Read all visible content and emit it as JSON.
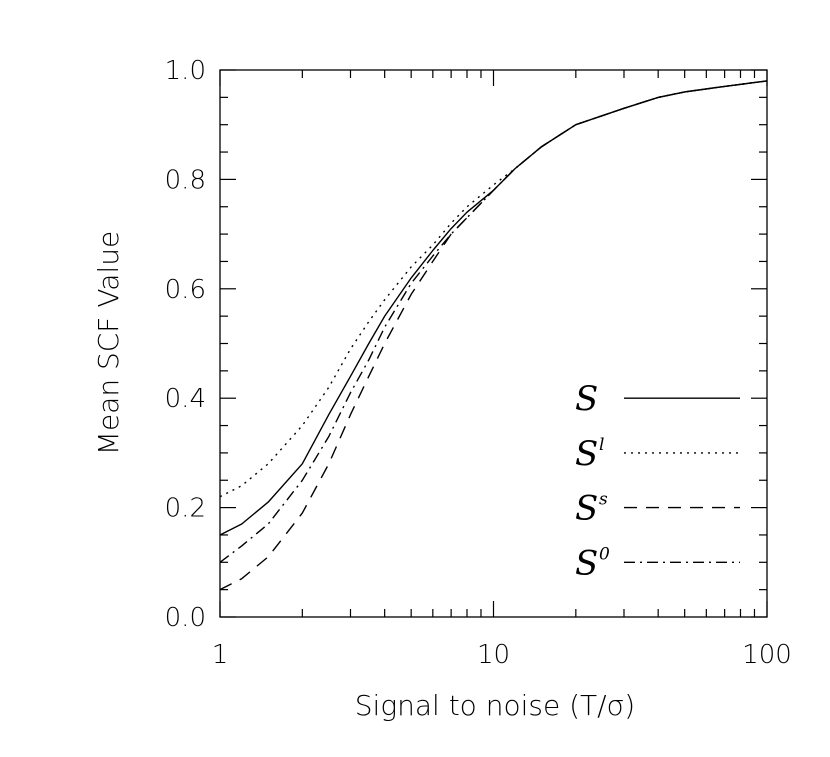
{
  "chart_data": {
    "type": "line",
    "xlabel": "Signal to noise (T/σ)",
    "ylabel": "Mean SCF Value",
    "xscale": "log",
    "xlim": [
      1,
      100
    ],
    "ylim": [
      0.0,
      1.0
    ],
    "x_ticks": [
      "1",
      "10",
      "100"
    ],
    "y_ticks": [
      "0.0",
      "0.2",
      "0.4",
      "0.6",
      "0.8",
      "1.0"
    ],
    "grid": false,
    "legend_position": "lower-right",
    "series": [
      {
        "name": "S",
        "superscript": "",
        "dash": "solid",
        "x": [
          1,
          1.2,
          1.5,
          2,
          2.5,
          3,
          3.5,
          4,
          5,
          6,
          7,
          8,
          10,
          12,
          15,
          20,
          30,
          40,
          50,
          70,
          100
        ],
        "y": [
          0.15,
          0.17,
          0.21,
          0.28,
          0.37,
          0.44,
          0.5,
          0.55,
          0.62,
          0.67,
          0.71,
          0.74,
          0.78,
          0.82,
          0.86,
          0.9,
          0.93,
          0.95,
          0.96,
          0.97,
          0.98
        ]
      },
      {
        "name": "S",
        "superscript": "l",
        "dash": "dotted",
        "x": [
          1,
          1.2,
          1.5,
          2,
          2.5,
          3,
          3.5,
          4,
          5,
          6,
          7,
          8,
          10,
          12,
          15,
          20,
          30,
          40,
          50,
          70,
          100
        ],
        "y": [
          0.22,
          0.24,
          0.28,
          0.35,
          0.42,
          0.49,
          0.54,
          0.58,
          0.64,
          0.68,
          0.72,
          0.75,
          0.79,
          0.82,
          0.86,
          0.9,
          0.93,
          0.95,
          0.96,
          0.97,
          0.98
        ]
      },
      {
        "name": "S",
        "superscript": "s",
        "dash": "dashed",
        "x": [
          1,
          1.2,
          1.5,
          2,
          2.5,
          3,
          3.5,
          4,
          5,
          6,
          7,
          8,
          10,
          12,
          15,
          20,
          30,
          40,
          50,
          70,
          100
        ],
        "y": [
          0.05,
          0.07,
          0.11,
          0.19,
          0.28,
          0.37,
          0.44,
          0.5,
          0.59,
          0.65,
          0.7,
          0.73,
          0.78,
          0.82,
          0.86,
          0.9,
          0.93,
          0.95,
          0.96,
          0.97,
          0.98
        ]
      },
      {
        "name": "S",
        "superscript": "0",
        "dash": "dashdot",
        "x": [
          1,
          1.2,
          1.5,
          2,
          2.5,
          3,
          3.5,
          4,
          5,
          6,
          7,
          8,
          10,
          12,
          15,
          20,
          30,
          40,
          50,
          70,
          100
        ],
        "y": [
          0.1,
          0.13,
          0.17,
          0.25,
          0.33,
          0.41,
          0.47,
          0.53,
          0.61,
          0.66,
          0.7,
          0.73,
          0.78,
          0.82,
          0.86,
          0.9,
          0.93,
          0.95,
          0.96,
          0.97,
          0.98
        ]
      }
    ]
  }
}
